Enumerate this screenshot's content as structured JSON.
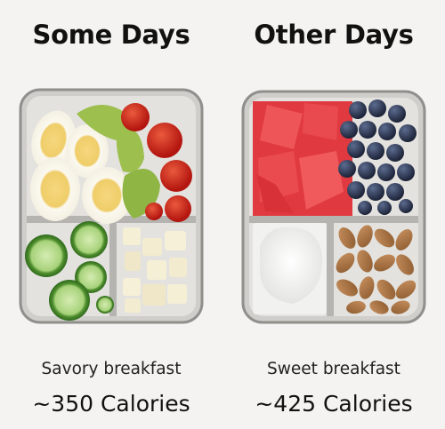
{
  "panels": [
    {
      "title": "Some Days",
      "caption": "Savory breakfast",
      "calories": "~350 Calories"
    },
    {
      "title": "Other Days",
      "caption": "Sweet breakfast",
      "calories": "~425 Calories"
    }
  ],
  "colors": {
    "background": "#f4f3f1",
    "container": "#b9b9b6",
    "egg_yolk": "#f2d57a",
    "avocado": "#9cbf4e",
    "tomato": "#c81d14",
    "cucumber": "#6aa53c",
    "watermelon": "#e8444a",
    "blueberry": "#27314d",
    "yogurt": "#fafafa",
    "almond": "#b07a45"
  },
  "icons": [
    "lunchbox-savory-photo",
    "lunchbox-sweet-photo"
  ]
}
